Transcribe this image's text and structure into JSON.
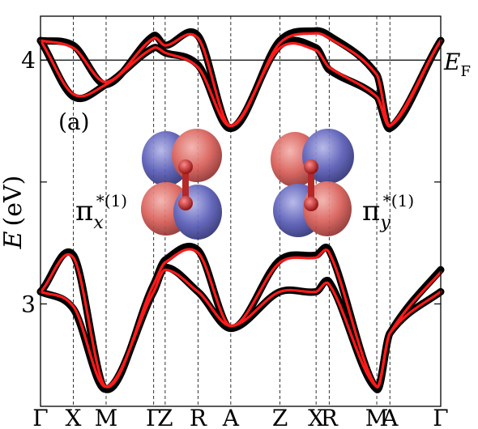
{
  "chart_data": {
    "type": "line",
    "title": "",
    "ylabel": "E (eV)",
    "ylabel_var": "E",
    "ylabel_unit": "(eV)",
    "ylim": [
      2.58,
      4.18
    ],
    "yticks": [
      {
        "value": 3,
        "label": "3"
      },
      {
        "value": 3.5,
        "label": ""
      },
      {
        "value": 4,
        "label": "4"
      }
    ],
    "kpath": [
      {
        "label": "Γ",
        "x": 0
      },
      {
        "label": "X",
        "x": 1
      },
      {
        "label": "M",
        "x": 2
      },
      {
        "label": "Γ",
        "x": 3.45
      },
      {
        "label": "Z",
        "x": 3.8
      },
      {
        "label": "R",
        "x": 4.8
      },
      {
        "label": "A",
        "x": 5.8
      },
      {
        "label": "Z",
        "x": 7.3
      },
      {
        "label": "X",
        "x": 8.4
      },
      {
        "label": "R",
        "x": 8.8
      },
      {
        "label": "M",
        "x": 10.25
      },
      {
        "label": "A",
        "x": 10.65
      },
      {
        "label": "Γ",
        "x": 12.2
      }
    ],
    "fermi_level": {
      "value": 4.0,
      "label": "E",
      "label_sub": "F"
    },
    "panel_label": "(a)",
    "orbital_labels": [
      {
        "base": "π",
        "sub": "x",
        "sup": "*(1)"
      },
      {
        "base": "π",
        "sub": "y",
        "sup": "*(1)"
      }
    ],
    "series": [
      {
        "band": 1,
        "dft": [
          [
            0,
            4.08
          ],
          [
            1,
            3.85
          ],
          [
            2,
            3.9
          ],
          [
            3.45,
            4.05
          ],
          [
            3.8,
            4.03
          ],
          [
            4.8,
            3.98
          ],
          [
            5.8,
            3.72
          ],
          [
            7.3,
            4.06
          ],
          [
            8.4,
            4.05
          ],
          [
            8.8,
            3.96
          ],
          [
            10.25,
            3.85
          ],
          [
            10.65,
            3.72
          ],
          [
            12.2,
            4.08
          ]
        ],
        "fit": [
          [
            0,
            4.08
          ],
          [
            1,
            3.86
          ],
          [
            2,
            3.9
          ],
          [
            3.45,
            4.05
          ],
          [
            3.8,
            4.03
          ],
          [
            4.8,
            3.97
          ],
          [
            5.8,
            3.73
          ],
          [
            7.3,
            4.05
          ],
          [
            8.4,
            4.04
          ],
          [
            8.8,
            3.97
          ],
          [
            10.25,
            3.85
          ],
          [
            10.65,
            3.73
          ],
          [
            12.2,
            4.08
          ]
        ]
      },
      {
        "band": 2,
        "dft": [
          [
            0,
            4.08
          ],
          [
            1,
            4.06
          ],
          [
            2,
            3.9
          ],
          [
            3.45,
            4.1
          ],
          [
            3.8,
            4.06
          ],
          [
            4.8,
            4.1
          ],
          [
            5.8,
            3.72
          ],
          [
            7.3,
            4.08
          ],
          [
            8.4,
            4.12
          ],
          [
            8.8,
            4.1
          ],
          [
            10.25,
            3.94
          ],
          [
            10.65,
            3.72
          ],
          [
            12.2,
            4.08
          ]
        ],
        "fit": [
          [
            0,
            4.08
          ],
          [
            1,
            4.05
          ],
          [
            2,
            3.91
          ],
          [
            3.45,
            4.09
          ],
          [
            3.8,
            4.06
          ],
          [
            4.8,
            4.09
          ],
          [
            5.8,
            3.73
          ],
          [
            7.3,
            4.07
          ],
          [
            8.4,
            4.11
          ],
          [
            8.8,
            4.09
          ],
          [
            10.25,
            3.94
          ],
          [
            10.65,
            3.73
          ],
          [
            12.2,
            4.08
          ]
        ]
      },
      {
        "band": 3,
        "dft": [
          [
            0,
            3.05
          ],
          [
            1,
            2.98
          ],
          [
            2,
            2.65
          ],
          [
            3.45,
            3.05
          ],
          [
            3.8,
            3.15
          ],
          [
            4.8,
            3.05
          ],
          [
            5.8,
            2.9
          ],
          [
            7.3,
            3.05
          ],
          [
            8.4,
            3.05
          ],
          [
            8.8,
            3.09
          ],
          [
            10.25,
            2.65
          ],
          [
            10.65,
            2.88
          ],
          [
            12.2,
            3.05
          ]
        ],
        "fit": [
          [
            0,
            3.05
          ],
          [
            1,
            2.99
          ],
          [
            2,
            2.66
          ],
          [
            3.45,
            3.05
          ],
          [
            3.8,
            3.14
          ],
          [
            4.8,
            3.05
          ],
          [
            5.8,
            2.91
          ],
          [
            7.3,
            3.05
          ],
          [
            8.4,
            3.05
          ],
          [
            8.8,
            3.08
          ],
          [
            10.25,
            2.66
          ],
          [
            10.65,
            2.88
          ],
          [
            12.2,
            3.05
          ]
        ]
      },
      {
        "band": 4,
        "dft": [
          [
            0,
            3.05
          ],
          [
            1,
            3.2
          ],
          [
            2,
            2.65
          ],
          [
            3.45,
            3.08
          ],
          [
            3.8,
            3.18
          ],
          [
            4.8,
            3.22
          ],
          [
            5.8,
            2.9
          ],
          [
            7.3,
            3.18
          ],
          [
            8.4,
            3.2
          ],
          [
            8.8,
            3.22
          ],
          [
            10.25,
            2.65
          ],
          [
            10.65,
            2.88
          ],
          [
            12.2,
            3.14
          ]
        ],
        "fit": [
          [
            0,
            3.05
          ],
          [
            1,
            3.19
          ],
          [
            2,
            2.66
          ],
          [
            3.45,
            3.08
          ],
          [
            3.8,
            3.17
          ],
          [
            4.8,
            3.21
          ],
          [
            5.8,
            2.91
          ],
          [
            7.3,
            3.17
          ],
          [
            8.4,
            3.19
          ],
          [
            8.8,
            3.21
          ],
          [
            10.25,
            2.66
          ],
          [
            10.65,
            2.88
          ],
          [
            12.2,
            3.13
          ]
        ]
      }
    ],
    "colors": {
      "dft": "#000000",
      "fit": "#ff1a1a",
      "orbital_red": "#d9605a",
      "orbital_blue": "#5c5fb8"
    }
  }
}
